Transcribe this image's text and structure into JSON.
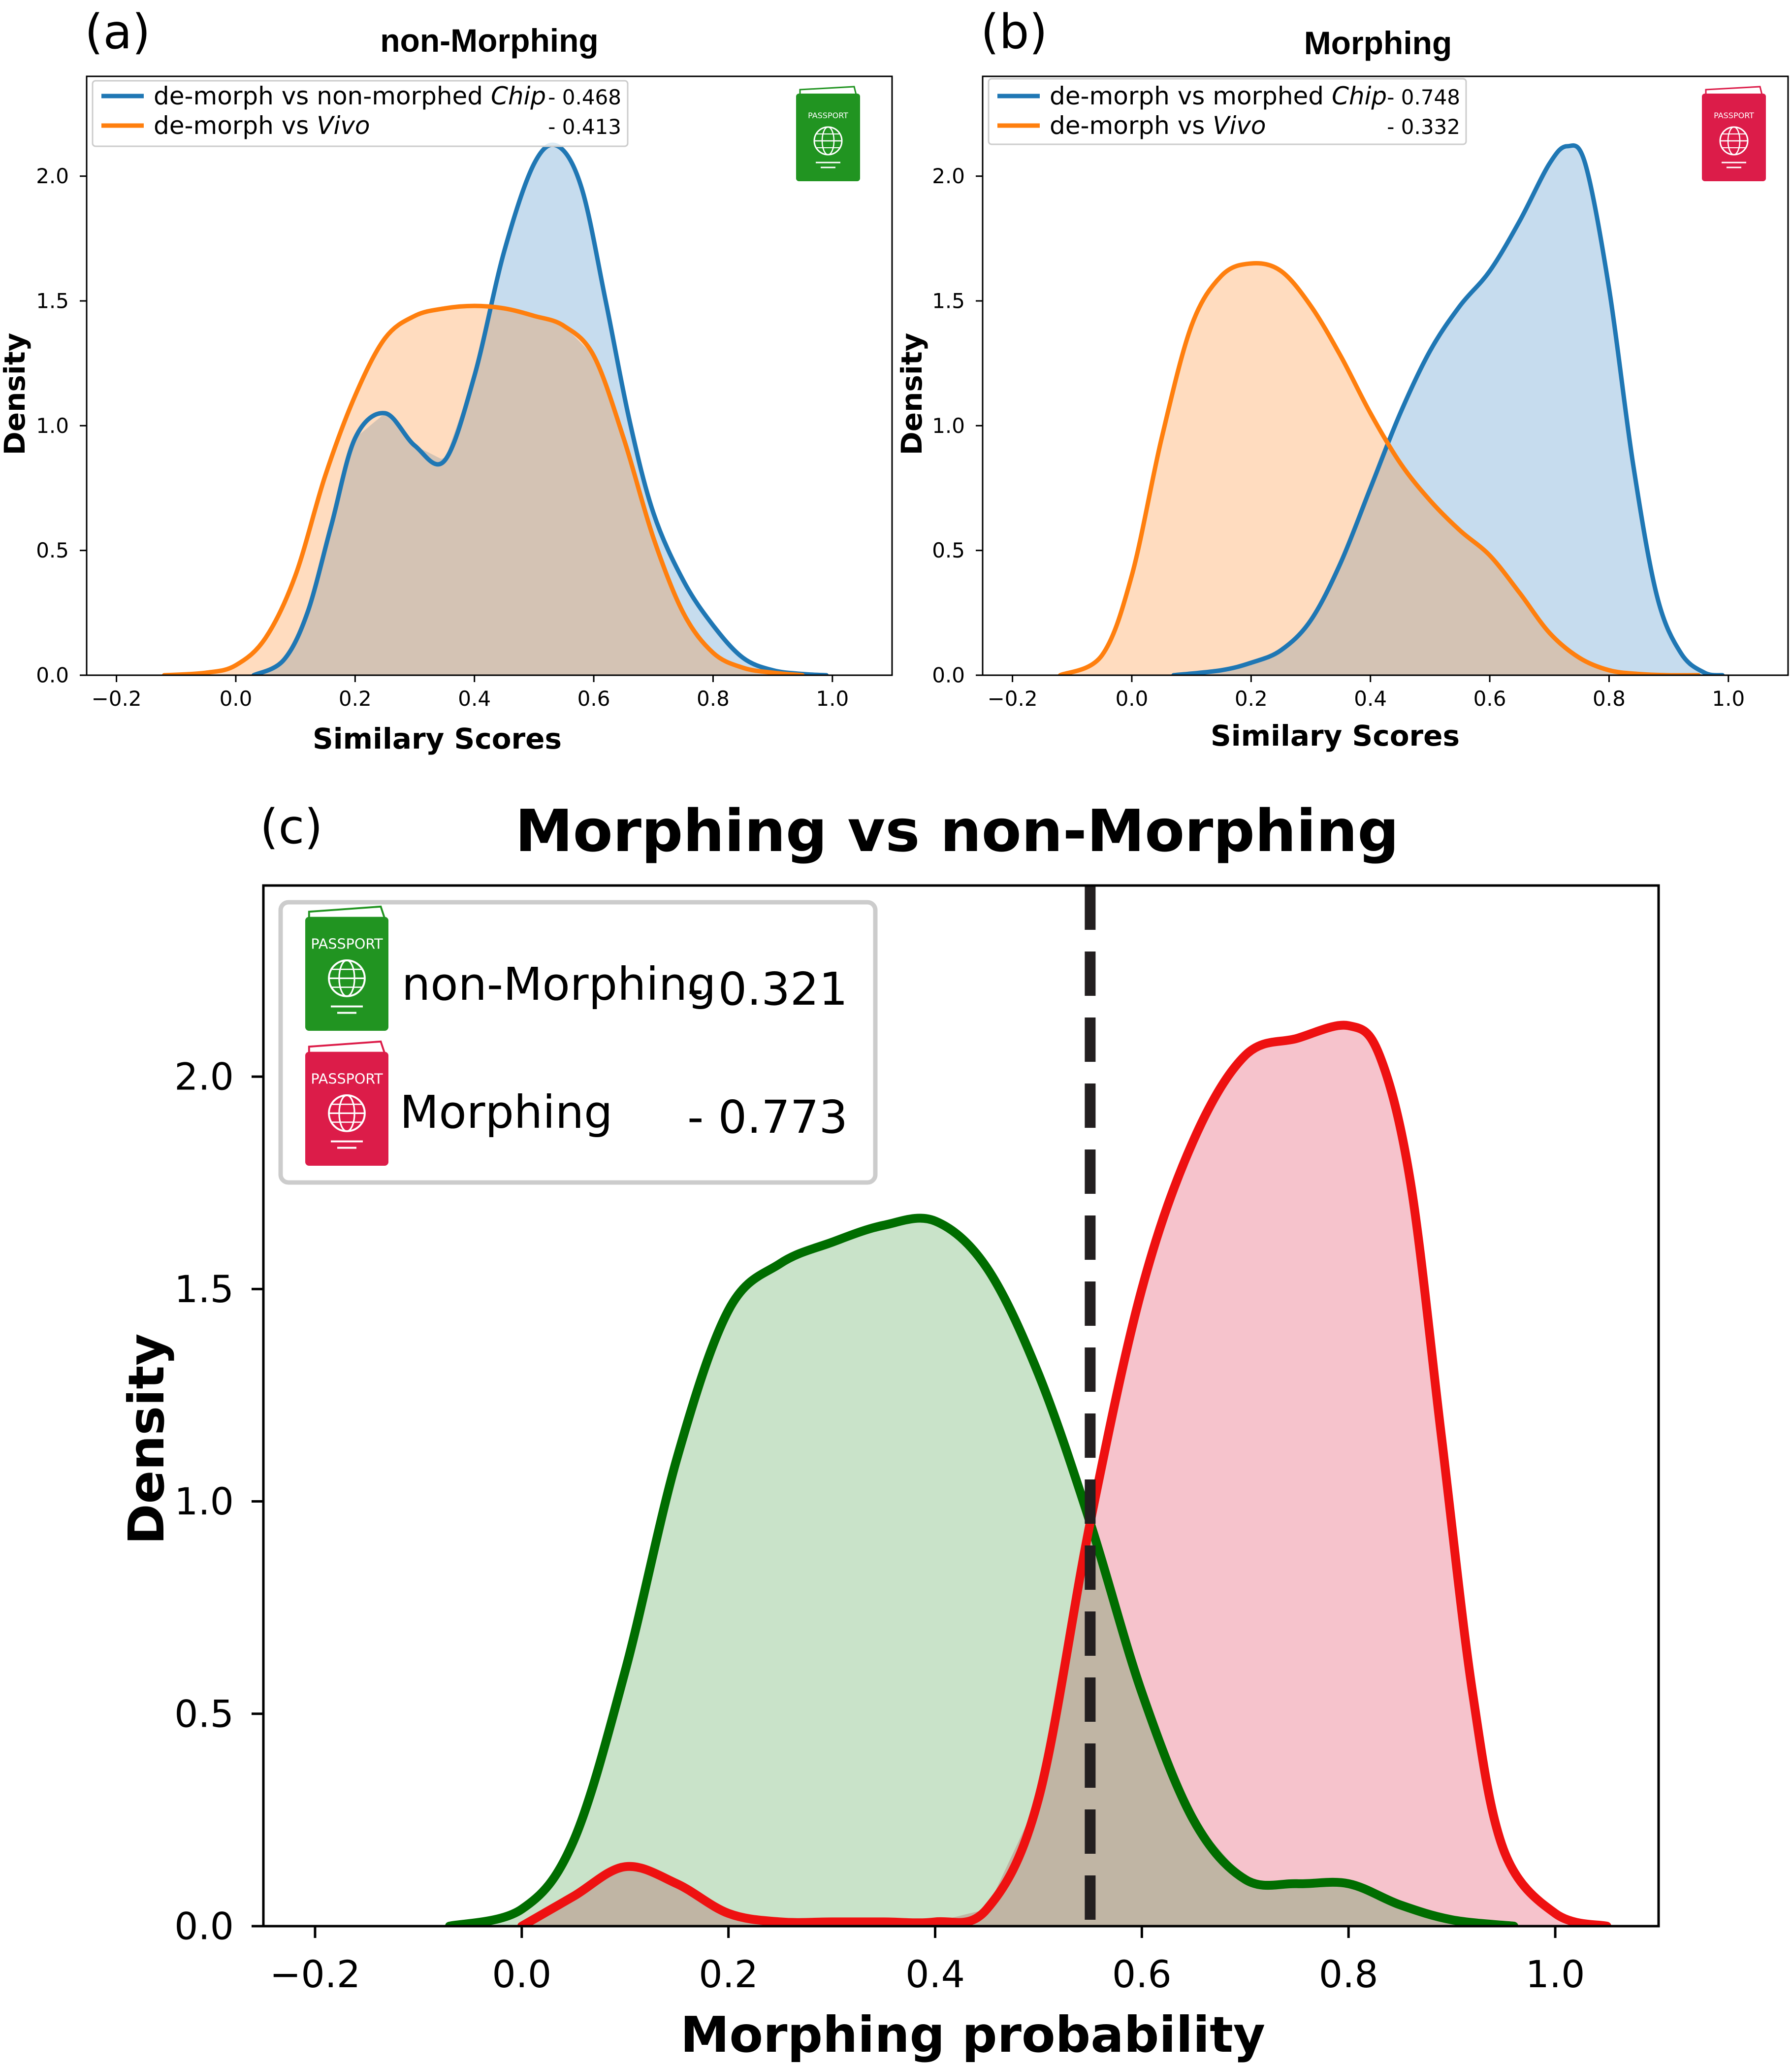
{
  "panels": {
    "a": {
      "letter": "(a)"
    },
    "b": {
      "letter": "(b)"
    },
    "c": {
      "letter": "(c)"
    }
  },
  "passport_icon": {
    "label": "PASSPORT",
    "icon": "passport-globe-icon"
  },
  "colors": {
    "blue": "#1f77b4",
    "orange": "#ff7f0e",
    "blue_fill": "#c6dcee",
    "orange_fill": "#ffdcbf",
    "overlap_fill": "#d4c3b4",
    "green": "#006d00",
    "red": "#ee1111",
    "green_fill": "#c9e3c9",
    "red_fill": "#f6c3cc",
    "overlap_fill_c": "#c0b5a4",
    "passport_green": "#219421",
    "passport_red": "#dc1c49"
  },
  "chart_data": [
    {
      "id": "a",
      "type": "area",
      "title": "non-Morphing",
      "xlabel": "Similary Scores",
      "ylabel": "Density",
      "xlim": [
        -0.25,
        1.1
      ],
      "ylim": [
        0,
        2.4
      ],
      "xticks": [
        -0.2,
        0.0,
        0.2,
        0.4,
        0.6,
        0.8,
        1.0
      ],
      "xtick_labels": [
        "−0.2",
        "0.0",
        "0.2",
        "0.4",
        "0.6",
        "0.8",
        "1.0"
      ],
      "yticks": [
        0.0,
        0.5,
        1.0,
        1.5,
        2.0
      ],
      "ytick_labels": [
        "0.0",
        "0.5",
        "1.0",
        "1.5",
        "2.0"
      ],
      "legend_position": "top-left",
      "legend_icon": "green",
      "series": [
        {
          "name_parts": [
            "de-morph vs non-morphed ",
            "Chip"
          ],
          "score": "- 0.468",
          "color": "blue",
          "x": [
            0.03,
            0.08,
            0.12,
            0.16,
            0.2,
            0.25,
            0.3,
            0.35,
            0.4,
            0.45,
            0.5,
            0.54,
            0.58,
            0.62,
            0.66,
            0.7,
            0.75,
            0.8,
            0.85,
            0.9,
            0.95,
            0.99
          ],
          "y": [
            0.0,
            0.06,
            0.25,
            0.6,
            0.95,
            1.05,
            0.92,
            0.86,
            1.2,
            1.7,
            2.05,
            2.12,
            1.95,
            1.5,
            1.02,
            0.65,
            0.38,
            0.2,
            0.07,
            0.02,
            0.005,
            0.0
          ]
        },
        {
          "name_parts": [
            "de-morph vs ",
            "Vivo"
          ],
          "score": "- 0.413",
          "color": "orange",
          "x": [
            -0.12,
            -0.05,
            0.0,
            0.05,
            0.1,
            0.15,
            0.2,
            0.25,
            0.3,
            0.35,
            0.4,
            0.45,
            0.5,
            0.55,
            0.6,
            0.65,
            0.7,
            0.75,
            0.8,
            0.85,
            0.9,
            0.95
          ],
          "y": [
            0.0,
            0.01,
            0.04,
            0.15,
            0.4,
            0.8,
            1.12,
            1.35,
            1.44,
            1.47,
            1.48,
            1.47,
            1.44,
            1.4,
            1.28,
            0.95,
            0.55,
            0.25,
            0.09,
            0.03,
            0.01,
            0.0
          ]
        }
      ]
    },
    {
      "id": "b",
      "type": "area",
      "title": "Morphing",
      "xlabel": "Similary Scores",
      "ylabel": "Density",
      "xlim": [
        -0.25,
        1.1
      ],
      "ylim": [
        0,
        2.4
      ],
      "xticks": [
        -0.2,
        0.0,
        0.2,
        0.4,
        0.6,
        0.8,
        1.0
      ],
      "xtick_labels": [
        "−0.2",
        "0.0",
        "0.2",
        "0.4",
        "0.6",
        "0.8",
        "1.0"
      ],
      "yticks": [
        0.0,
        0.5,
        1.0,
        1.5,
        2.0
      ],
      "ytick_labels": [
        "0.0",
        "0.5",
        "1.0",
        "1.5",
        "2.0"
      ],
      "legend_position": "top-left",
      "legend_icon": "red",
      "series": [
        {
          "name_parts": [
            "de-morph vs morphed ",
            "Chip"
          ],
          "score": "- 0.748",
          "color": "blue",
          "x": [
            0.07,
            0.15,
            0.2,
            0.25,
            0.3,
            0.35,
            0.4,
            0.45,
            0.5,
            0.55,
            0.6,
            0.65,
            0.7,
            0.73,
            0.76,
            0.8,
            0.84,
            0.88,
            0.92,
            0.96,
            0.99
          ],
          "y": [
            0.0,
            0.02,
            0.05,
            0.1,
            0.22,
            0.45,
            0.75,
            1.05,
            1.3,
            1.48,
            1.62,
            1.82,
            2.05,
            2.12,
            2.05,
            1.55,
            0.85,
            0.32,
            0.09,
            0.01,
            0.0
          ]
        },
        {
          "name_parts": [
            "de-morph vs ",
            "Vivo"
          ],
          "score": "- 0.332",
          "color": "orange",
          "x": [
            -0.12,
            -0.05,
            0.0,
            0.05,
            0.1,
            0.15,
            0.2,
            0.25,
            0.3,
            0.35,
            0.4,
            0.45,
            0.5,
            0.55,
            0.6,
            0.65,
            0.7,
            0.75,
            0.8,
            0.85,
            0.9,
            0.95
          ],
          "y": [
            0.0,
            0.08,
            0.4,
            0.95,
            1.4,
            1.6,
            1.65,
            1.62,
            1.48,
            1.28,
            1.05,
            0.85,
            0.7,
            0.58,
            0.48,
            0.33,
            0.17,
            0.07,
            0.02,
            0.005,
            0.0,
            0.0
          ]
        }
      ]
    },
    {
      "id": "c",
      "type": "area",
      "title": "Morphing vs non-Morphing",
      "xlabel": "Morphing probability",
      "ylabel": "Density",
      "xlim": [
        -0.25,
        1.1
      ],
      "ylim": [
        0,
        2.45
      ],
      "xticks": [
        -0.2,
        0.0,
        0.2,
        0.4,
        0.6,
        0.8,
        1.0
      ],
      "xtick_labels": [
        "−0.2",
        "0.0",
        "0.2",
        "0.4",
        "0.6",
        "0.8",
        "1.0"
      ],
      "yticks": [
        0.0,
        0.5,
        1.0,
        1.5,
        2.0
      ],
      "ytick_labels": [
        "0.0",
        "0.5",
        "1.0",
        "1.5",
        "2.0"
      ],
      "legend_position": "top-left",
      "threshold": {
        "x": 0.55,
        "y": [
          0,
          2.45
        ],
        "style": "dashed",
        "color": "#231f20"
      },
      "series": [
        {
          "name": "non-Morphing",
          "score": "- 0.321",
          "color": "green",
          "x": [
            -0.07,
            0.0,
            0.05,
            0.1,
            0.15,
            0.2,
            0.25,
            0.3,
            0.35,
            0.4,
            0.45,
            0.5,
            0.55,
            0.6,
            0.65,
            0.7,
            0.75,
            0.8,
            0.85,
            0.9,
            0.96
          ],
          "y": [
            0.0,
            0.04,
            0.2,
            0.6,
            1.1,
            1.45,
            1.56,
            1.61,
            1.65,
            1.66,
            1.55,
            1.3,
            0.95,
            0.55,
            0.25,
            0.11,
            0.1,
            0.1,
            0.05,
            0.015,
            0.0
          ]
        },
        {
          "name": "Morphing",
          "score": "- 0.773",
          "color": "red",
          "x": [
            0.0,
            0.05,
            0.1,
            0.15,
            0.2,
            0.25,
            0.3,
            0.35,
            0.4,
            0.45,
            0.5,
            0.55,
            0.6,
            0.65,
            0.7,
            0.75,
            0.8,
            0.83,
            0.86,
            0.89,
            0.92,
            0.95,
            1.0,
            1.05
          ],
          "y": [
            0.0,
            0.07,
            0.14,
            0.1,
            0.03,
            0.01,
            0.01,
            0.01,
            0.01,
            0.04,
            0.3,
            0.95,
            1.5,
            1.85,
            2.05,
            2.09,
            2.12,
            2.05,
            1.75,
            1.15,
            0.55,
            0.18,
            0.03,
            0.0
          ]
        }
      ]
    }
  ]
}
